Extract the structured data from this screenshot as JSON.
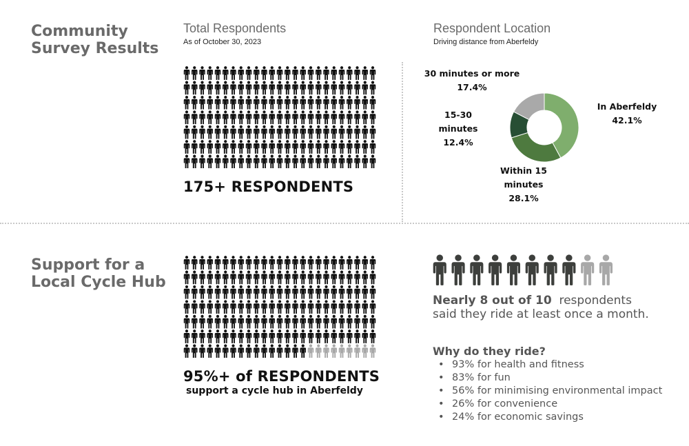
{
  "sections": {
    "survey_title": [
      "Community",
      "Survey Results"
    ],
    "cycle_title": [
      "Support for a",
      "Local Cycle Hub"
    ]
  },
  "total_respondents": {
    "title": "Total Respondents",
    "subtitle": "As of October 30, 2023",
    "label": "175+ RESPONDENTS",
    "icon": "person-icon"
  },
  "location": {
    "title": "Respondent Location",
    "subtitle": "Driving distance from Aberfeldy"
  },
  "cycle_hub": {
    "headline": "95%+ of RESPONDENTS",
    "subline": "support a cycle hub in Aberfeldy",
    "ride_stat_bold": "Nearly 8 out of 10",
    "ride_stat_rest": "respondents",
    "ride_stat_line2": "said they ride at least once a month.",
    "why_title": "Why do they ride?",
    "reasons": [
      "93% for health and fitness",
      "83% for fun",
      "56% for minimising environmental impact",
      "26% for convenience",
      "24% for economic savings"
    ]
  },
  "colors": {
    "icon_dark": "#111111",
    "icon_grey": "#a8a8a8",
    "ride_dark": "#3d3f3c",
    "ride_light": "#a8a8a8"
  },
  "chart_data": [
    {
      "type": "pictograph",
      "icon": "person",
      "total": 175,
      "highlighted": 175,
      "rows": 7,
      "per_row": 25,
      "label": "175+ RESPONDENTS"
    },
    {
      "type": "pie",
      "donut": true,
      "title": "Respondent Location",
      "subtitle": "Driving distance from Aberfeldy",
      "slices": [
        {
          "label": "In Aberfeldy",
          "value": 42.1,
          "display": "42.1%",
          "color": "#7fae6d"
        },
        {
          "label": "Within 15 minutes",
          "value": 28.1,
          "display": "28.1%",
          "color": "#4e7a3f"
        },
        {
          "label": "15-30 minutes",
          "value": 12.4,
          "display": "12.4%",
          "color": "#274e34"
        },
        {
          "label": "30 minutes or more",
          "value": 17.4,
          "display": "17.4%",
          "color": "#a9a9a9"
        }
      ]
    },
    {
      "type": "pictograph",
      "icon": "person",
      "total": 175,
      "highlighted": 166,
      "rows": 7,
      "per_row": 25,
      "label": "95%+ of RESPONDENTS"
    },
    {
      "type": "pictograph",
      "icon": "person",
      "total": 10,
      "highlighted": 8,
      "label": "Nearly 8 out of 10"
    }
  ]
}
